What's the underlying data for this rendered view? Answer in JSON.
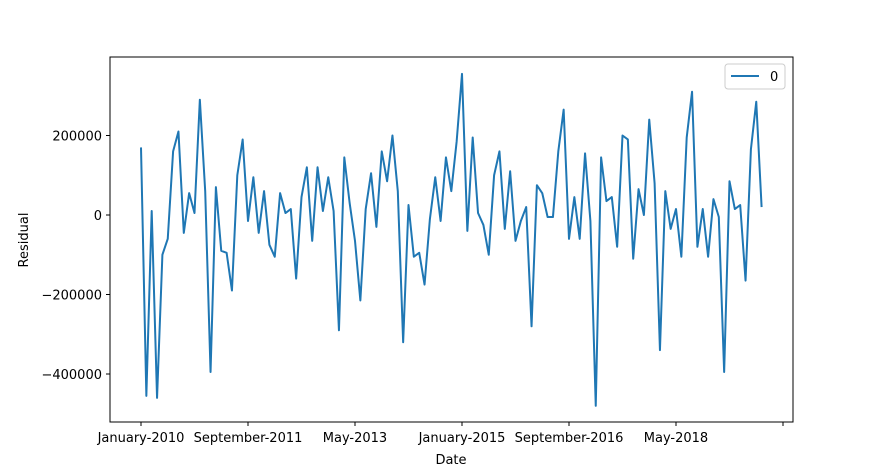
{
  "chart_data": {
    "type": "line",
    "xlabel": "Date",
    "ylabel": "Residual",
    "x_tick_labels": [
      "January-2010",
      "September-2011",
      "May-2013",
      "January-2015",
      "September-2016",
      "May-2018",
      ""
    ],
    "y_tick_labels": [
      "−400000",
      "−200000",
      "0",
      "200000"
    ],
    "y_ticks": [
      -400000,
      -200000,
      0,
      200000
    ],
    "ylim": [
      -485000,
      395000
    ],
    "x_start": "January-2010",
    "x_frequency": "monthly",
    "grid": false,
    "legend_position": "top-right",
    "series": [
      {
        "name": "0",
        "color": "#1f77b4",
        "values": [
          170000,
          -455000,
          10000,
          -460000,
          -100000,
          -60000,
          160000,
          210000,
          -45000,
          55000,
          5000,
          290000,
          60000,
          -395000,
          70000,
          -90000,
          -95000,
          -190000,
          100000,
          190000,
          -15000,
          95000,
          -45000,
          60000,
          -75000,
          -105000,
          55000,
          5000,
          15000,
          -160000,
          45000,
          120000,
          -65000,
          120000,
          10000,
          95000,
          10000,
          -290000,
          145000,
          30000,
          -65000,
          -215000,
          15000,
          105000,
          -30000,
          160000,
          85000,
          200000,
          60000,
          -320000,
          25000,
          -105000,
          -95000,
          -175000,
          -10000,
          95000,
          -15000,
          145000,
          60000,
          185000,
          355000,
          -40000,
          195000,
          5000,
          -25000,
          -100000,
          100000,
          160000,
          -35000,
          110000,
          -65000,
          -15000,
          20000,
          -280000,
          75000,
          55000,
          -5000,
          -5000,
          160000,
          265000,
          -60000,
          45000,
          -60000,
          155000,
          -15000,
          -480000,
          145000,
          35000,
          45000,
          -80000,
          200000,
          190000,
          -110000,
          65000,
          0,
          240000,
          80000,
          -340000,
          60000,
          -35000,
          15000,
          -105000,
          195000,
          310000,
          -80000,
          15000,
          -105000,
          40000,
          -5000,
          -395000,
          85000,
          15000,
          25000,
          -165000,
          165000,
          285000,
          20000
        ]
      }
    ]
  }
}
